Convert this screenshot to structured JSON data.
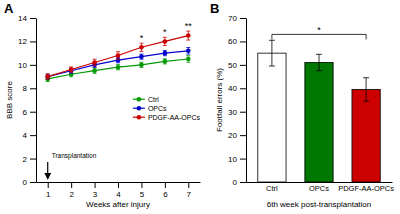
{
  "chart_data": [
    {
      "type": "line",
      "title": "A",
      "x": [
        1,
        2,
        3,
        4,
        5,
        6,
        7
      ],
      "xlim": [
        0.5,
        7.5
      ],
      "xticks": [
        1,
        2,
        3,
        4,
        5,
        6,
        7
      ],
      "ylim": [
        0,
        14
      ],
      "yticks": [
        0,
        2,
        4,
        6,
        8,
        10,
        12,
        14
      ],
      "xlabel": "Weeks after injury",
      "ylabel": "BBB score",
      "marker": "circle",
      "grid": false,
      "legend": "right",
      "series": [
        {
          "name": "Ctrl",
          "color": "#009900",
          "values": [
            8.8,
            9.2,
            9.5,
            9.8,
            10.0,
            10.3,
            10.5
          ],
          "errors": [
            0.22,
            0.22,
            0.22,
            0.22,
            0.22,
            0.22,
            0.28
          ]
        },
        {
          "name": "OPCs",
          "color": "#0000cc",
          "values": [
            9.0,
            9.5,
            10.0,
            10.4,
            10.7,
            11.0,
            11.2
          ],
          "errors": [
            0.22,
            0.22,
            0.22,
            0.22,
            0.22,
            0.22,
            0.28
          ]
        },
        {
          "name": "PDGF-AA-OPCs",
          "color": "#cc0000",
          "values": [
            9.0,
            9.6,
            10.2,
            10.8,
            11.5,
            12.0,
            12.5
          ],
          "errors": [
            0.22,
            0.22,
            0.28,
            0.32,
            0.35,
            0.35,
            0.38
          ]
        }
      ],
      "annotations": [
        {
          "text": "*",
          "x": 5,
          "series": "PDGF-AA-OPCs"
        },
        {
          "text": "*",
          "x": 6,
          "series": "PDGF-AA-OPCs"
        },
        {
          "text": "**",
          "x": 7,
          "series": "PDGF-AA-OPCs"
        },
        {
          "text": "Transplantation",
          "x": 1,
          "arrow": true
        }
      ]
    },
    {
      "type": "bar",
      "title": "B",
      "categories": [
        "Ctrl",
        "OPCs",
        "PDGF-AA-OPCs"
      ],
      "values": [
        55.0,
        51.0,
        39.5
      ],
      "errors": [
        5.5,
        3.5,
        5.0
      ],
      "colors": [
        "#ffffff",
        "#007700",
        "#cc0000"
      ],
      "ylim": [
        0,
        70
      ],
      "yticks": [
        0,
        10,
        20,
        30,
        40,
        50,
        60,
        70
      ],
      "xlabel": "6th week post-transplantation",
      "ylabel": "Footfall errors (%)",
      "grid": false,
      "annotations": [
        {
          "text": "*",
          "x1": "Ctrl",
          "x2": "PDGF-AA-OPCs",
          "y": 63
        }
      ]
    }
  ]
}
